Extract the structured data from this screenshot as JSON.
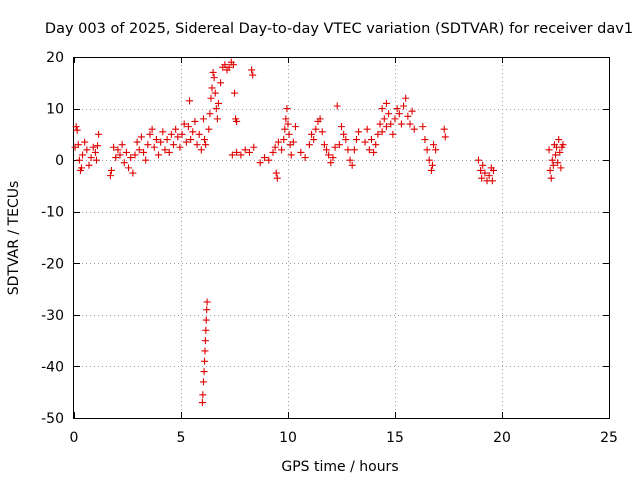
{
  "chart_data": {
    "type": "scatter",
    "title": "Day 003 of 2025, Sidereal Day-to-day VTEC variation (SDTVAR) for receiver dav1",
    "xlabel": "GPS time / hours",
    "ylabel": "SDTVAR / TECUs",
    "xlim": [
      0,
      25
    ],
    "ylim": [
      -50,
      20
    ],
    "xticks": [
      0,
      5,
      10,
      15,
      20,
      25
    ],
    "yticks": [
      -50,
      -40,
      -30,
      -20,
      -10,
      0,
      10,
      20
    ],
    "grid": true,
    "marker": "+",
    "series": [
      {
        "name": "SDTVAR",
        "color": "#e00000",
        "points": [
          [
            0.05,
            2.5
          ],
          [
            0.1,
            6.5
          ],
          [
            0.15,
            5.8
          ],
          [
            0.2,
            3.0
          ],
          [
            0.25,
            0.0
          ],
          [
            0.3,
            -2.0
          ],
          [
            0.35,
            -1.5
          ],
          [
            0.4,
            1.0
          ],
          [
            0.5,
            3.5
          ],
          [
            0.6,
            2.0
          ],
          [
            0.7,
            -1.0
          ],
          [
            0.8,
            0.5
          ],
          [
            0.9,
            2.5
          ],
          [
            1.0,
            1.5
          ],
          [
            1.05,
            0.0
          ],
          [
            1.1,
            2.8
          ],
          [
            1.15,
            5.0
          ],
          [
            1.7,
            -3.0
          ],
          [
            1.75,
            -2.0
          ],
          [
            1.85,
            2.5
          ],
          [
            1.95,
            0.5
          ],
          [
            2.05,
            2.0
          ],
          [
            2.15,
            1.0
          ],
          [
            2.25,
            3.0
          ],
          [
            2.35,
            -0.5
          ],
          [
            2.45,
            1.5
          ],
          [
            2.55,
            -1.5
          ],
          [
            2.65,
            0.5
          ],
          [
            2.75,
            -2.5
          ],
          [
            2.85,
            1.0
          ],
          [
            2.95,
            3.5
          ],
          [
            3.05,
            2.0
          ],
          [
            3.15,
            4.5
          ],
          [
            3.25,
            1.5
          ],
          [
            3.35,
            0.0
          ],
          [
            3.45,
            3.0
          ],
          [
            3.55,
            5.0
          ],
          [
            3.65,
            6.0
          ],
          [
            3.75,
            2.5
          ],
          [
            3.85,
            4.0
          ],
          [
            3.95,
            1.0
          ],
          [
            4.05,
            3.5
          ],
          [
            4.15,
            5.5
          ],
          [
            4.25,
            2.0
          ],
          [
            4.35,
            4.0
          ],
          [
            4.45,
            1.5
          ],
          [
            4.55,
            5.0
          ],
          [
            4.65,
            3.0
          ],
          [
            4.75,
            6.0
          ],
          [
            4.85,
            4.5
          ],
          [
            4.95,
            2.5
          ],
          [
            5.05,
            5.0
          ],
          [
            5.15,
            7.0
          ],
          [
            5.25,
            3.5
          ],
          [
            5.35,
            6.5
          ],
          [
            5.45,
            4.0
          ],
          [
            5.55,
            5.5
          ],
          [
            5.65,
            7.5
          ],
          [
            5.75,
            3.0
          ],
          [
            5.85,
            5.0
          ],
          [
            5.95,
            2.0
          ],
          [
            6.05,
            8.0
          ],
          [
            6.1,
            4.0
          ],
          [
            6.15,
            3.0
          ],
          [
            5.4,
            11.5
          ],
          [
            6.0,
            -47.0
          ],
          [
            6.02,
            -45.5
          ],
          [
            6.05,
            -43.0
          ],
          [
            6.08,
            -41.0
          ],
          [
            6.1,
            -39.0
          ],
          [
            6.12,
            -37.0
          ],
          [
            6.14,
            -35.0
          ],
          [
            6.16,
            -33.0
          ],
          [
            6.18,
            -31.0
          ],
          [
            6.2,
            -29.0
          ],
          [
            6.22,
            -27.5
          ],
          [
            6.3,
            6.0
          ],
          [
            6.35,
            9.0
          ],
          [
            6.4,
            12.0
          ],
          [
            6.45,
            14.0
          ],
          [
            6.5,
            17.0
          ],
          [
            6.55,
            16.0
          ],
          [
            6.6,
            13.0
          ],
          [
            6.65,
            10.0
          ],
          [
            6.7,
            8.0
          ],
          [
            6.75,
            11.0
          ],
          [
            6.85,
            15.0
          ],
          [
            6.95,
            18.0
          ],
          [
            7.05,
            18.5
          ],
          [
            7.15,
            17.5
          ],
          [
            7.25,
            18.0
          ],
          [
            7.35,
            19.0
          ],
          [
            7.45,
            18.5
          ],
          [
            7.5,
            13.0
          ],
          [
            7.55,
            8.0
          ],
          [
            7.6,
            7.5
          ],
          [
            8.3,
            17.5
          ],
          [
            8.35,
            16.5
          ],
          [
            7.4,
            1.0
          ],
          [
            7.6,
            1.5
          ],
          [
            7.8,
            1.0
          ],
          [
            8.0,
            2.0
          ],
          [
            8.2,
            1.5
          ],
          [
            8.4,
            2.5
          ],
          [
            8.7,
            -0.5
          ],
          [
            8.9,
            0.5
          ],
          [
            9.1,
            0.0
          ],
          [
            9.3,
            1.5
          ],
          [
            9.4,
            2.5
          ],
          [
            9.45,
            -2.5
          ],
          [
            9.5,
            -3.5
          ],
          [
            9.55,
            3.5
          ],
          [
            9.7,
            2.0
          ],
          [
            9.8,
            4.0
          ],
          [
            9.85,
            6.0
          ],
          [
            9.9,
            8.0
          ],
          [
            9.95,
            10.0
          ],
          [
            10.0,
            7.0
          ],
          [
            10.05,
            5.0
          ],
          [
            10.1,
            3.0
          ],
          [
            10.15,
            1.0
          ],
          [
            10.25,
            3.5
          ],
          [
            10.35,
            6.5
          ],
          [
            10.6,
            1.5
          ],
          [
            10.8,
            0.5
          ],
          [
            11.0,
            3.0
          ],
          [
            11.1,
            5.0
          ],
          [
            11.2,
            4.0
          ],
          [
            11.3,
            6.0
          ],
          [
            11.4,
            7.5
          ],
          [
            11.5,
            8.0
          ],
          [
            11.6,
            5.5
          ],
          [
            11.7,
            3.0
          ],
          [
            11.8,
            2.0
          ],
          [
            11.9,
            1.0
          ],
          [
            12.0,
            -0.5
          ],
          [
            12.1,
            0.5
          ],
          [
            12.2,
            2.5
          ],
          [
            12.3,
            10.5
          ],
          [
            12.4,
            3.0
          ],
          [
            12.5,
            6.5
          ],
          [
            12.6,
            5.0
          ],
          [
            12.7,
            4.0
          ],
          [
            12.8,
            2.0
          ],
          [
            12.9,
            0.0
          ],
          [
            13.0,
            -1.0
          ],
          [
            13.1,
            2.0
          ],
          [
            13.2,
            4.0
          ],
          [
            13.3,
            5.5
          ],
          [
            13.6,
            3.5
          ],
          [
            13.7,
            6.0
          ],
          [
            13.8,
            2.0
          ],
          [
            13.9,
            4.0
          ],
          [
            14.0,
            1.5
          ],
          [
            14.1,
            3.0
          ],
          [
            14.2,
            5.0
          ],
          [
            14.3,
            7.0
          ],
          [
            14.4,
            5.5
          ],
          [
            14.5,
            8.0
          ],
          [
            14.6,
            6.5
          ],
          [
            14.7,
            9.0
          ],
          [
            14.8,
            7.0
          ],
          [
            14.9,
            5.0
          ],
          [
            15.0,
            8.0
          ],
          [
            15.1,
            10.0
          ],
          [
            15.2,
            9.0
          ],
          [
            15.3,
            7.0
          ],
          [
            15.4,
            10.5
          ],
          [
            15.5,
            12.0
          ],
          [
            15.6,
            8.5
          ],
          [
            15.7,
            7.0
          ],
          [
            15.8,
            9.5
          ],
          [
            15.9,
            6.0
          ],
          [
            14.6,
            11.0
          ],
          [
            14.4,
            10.0
          ],
          [
            16.3,
            6.5
          ],
          [
            16.4,
            4.0
          ],
          [
            16.5,
            2.0
          ],
          [
            16.6,
            0.0
          ],
          [
            16.7,
            -2.0
          ],
          [
            16.75,
            -1.0
          ],
          [
            16.8,
            3.0
          ],
          [
            16.9,
            2.0
          ],
          [
            17.3,
            6.0
          ],
          [
            17.35,
            4.5
          ],
          [
            18.9,
            0.0
          ],
          [
            19.0,
            -2.0
          ],
          [
            19.05,
            -3.5
          ],
          [
            19.1,
            -1.0
          ],
          [
            19.2,
            -2.5
          ],
          [
            19.3,
            -4.0
          ],
          [
            19.4,
            -3.0
          ],
          [
            19.5,
            -1.5
          ],
          [
            19.55,
            -4.0
          ],
          [
            19.6,
            -2.0
          ],
          [
            22.2,
            2.0
          ],
          [
            22.25,
            -2.0
          ],
          [
            22.3,
            -3.5
          ],
          [
            22.35,
            0.0
          ],
          [
            22.4,
            -1.0
          ],
          [
            22.45,
            3.0
          ],
          [
            22.5,
            1.0
          ],
          [
            22.55,
            2.5
          ],
          [
            22.6,
            -0.5
          ],
          [
            22.65,
            4.0
          ],
          [
            22.7,
            1.5
          ],
          [
            22.75,
            -1.5
          ],
          [
            22.8,
            2.5
          ],
          [
            22.85,
            3.0
          ]
        ]
      }
    ]
  }
}
